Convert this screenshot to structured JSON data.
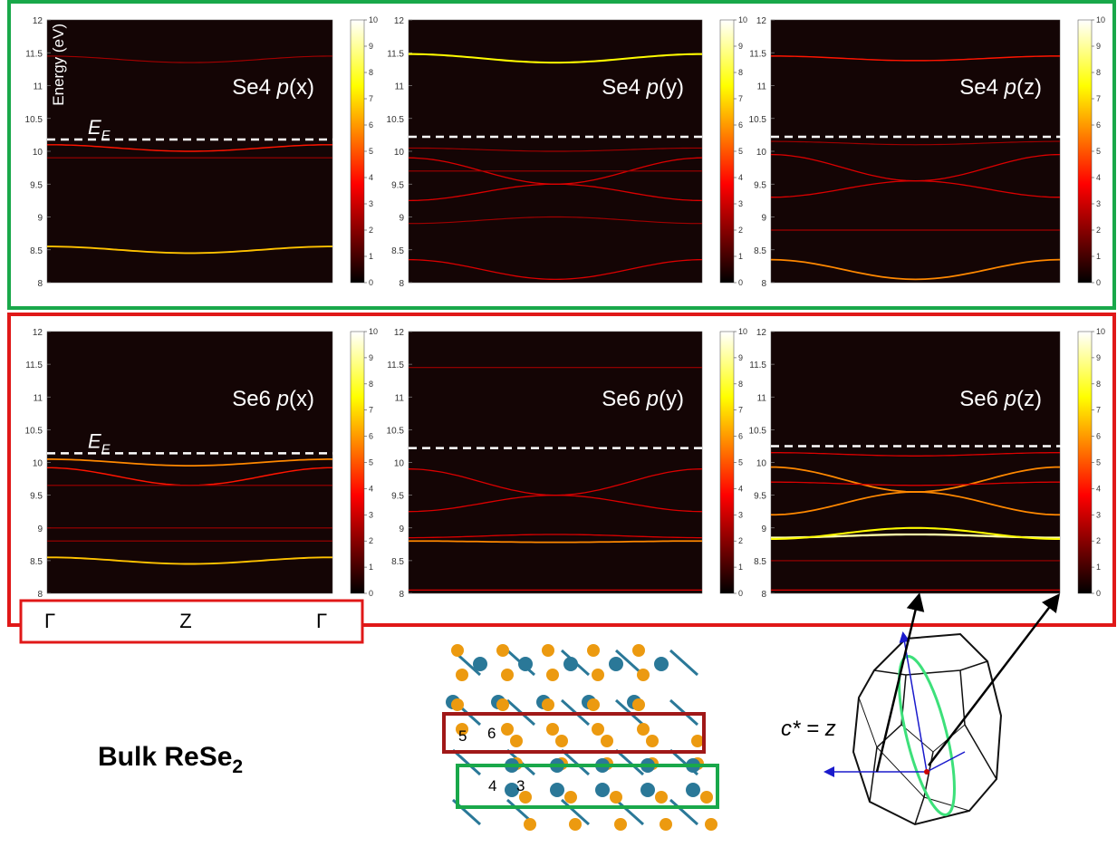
{
  "figure": {
    "ylabel": "Energy (eV)",
    "ef": {
      "symbol": "E",
      "sub": "F"
    },
    "kpoints": [
      "Γ",
      "Z",
      "Γ"
    ],
    "bulk": {
      "text": "Bulk ReSe",
      "sub": "2"
    },
    "atoms": [
      "5",
      "6",
      "4",
      "3"
    ],
    "axis_label": "c* = z",
    "panels": [
      {
        "atom": "Se4",
        "orbital": "p",
        "component": "(x)",
        "ylim": [
          8,
          12
        ],
        "yticks": [
          8,
          8.5,
          9,
          9.5,
          10,
          10.5,
          11,
          11.5,
          12
        ],
        "fermi": 10.18,
        "clim": [
          0,
          10
        ],
        "cticks": [
          0,
          1,
          2,
          3,
          4,
          5,
          6,
          7,
          8,
          9,
          10
        ],
        "bands": [
          {
            "gamma": 10.1,
            "z": 10.0,
            "intensity": 3
          },
          {
            "gamma": 8.55,
            "z": 8.45,
            "intensity": 6
          },
          {
            "gamma": 11.45,
            "z": 11.35,
            "intensity": 1
          },
          {
            "gamma": 9.9,
            "z": 9.9,
            "intensity": 1
          }
        ]
      },
      {
        "atom": "Se4",
        "orbital": "p",
        "component": "(y)",
        "ylim": [
          8,
          12
        ],
        "yticks": [
          8,
          8.5,
          9,
          9.5,
          10,
          10.5,
          11,
          11.5,
          12
        ],
        "fermi": 10.22,
        "clim": [
          0,
          10
        ],
        "cticks": [
          0,
          1,
          2,
          3,
          4,
          5,
          6,
          7,
          8,
          9,
          10
        ],
        "bands": [
          {
            "gamma": 11.48,
            "z": 11.35,
            "intensity": 7
          },
          {
            "gamma": 9.9,
            "z": 9.5,
            "intensity": 2
          },
          {
            "gamma": 9.25,
            "z": 9.5,
            "intensity": 2
          },
          {
            "gamma": 9.7,
            "z": 9.7,
            "intensity": 1
          },
          {
            "gamma": 8.9,
            "z": 9.0,
            "intensity": 1
          },
          {
            "gamma": 8.35,
            "z": 8.05,
            "intensity": 2
          },
          {
            "gamma": 10.05,
            "z": 10.0,
            "intensity": 1
          }
        ]
      },
      {
        "atom": "Se4",
        "orbital": "p",
        "component": "(z)",
        "ylim": [
          8,
          12
        ],
        "yticks": [
          8,
          8.5,
          9,
          9.5,
          10,
          10.5,
          11,
          11.5,
          12
        ],
        "fermi": 10.22,
        "clim": [
          0,
          10
        ],
        "cticks": [
          0,
          1,
          2,
          3,
          4,
          5,
          6,
          7,
          8,
          9,
          10
        ],
        "bands": [
          {
            "gamma": 11.45,
            "z": 11.38,
            "intensity": 3
          },
          {
            "gamma": 8.35,
            "z": 8.05,
            "intensity": 5
          },
          {
            "gamma": 9.95,
            "z": 9.55,
            "intensity": 2
          },
          {
            "gamma": 9.3,
            "z": 9.55,
            "intensity": 2
          },
          {
            "gamma": 10.15,
            "z": 10.1,
            "intensity": 1
          },
          {
            "gamma": 8.8,
            "z": 8.8,
            "intensity": 1
          }
        ]
      },
      {
        "atom": "Se6",
        "orbital": "p",
        "component": "(x)",
        "ylim": [
          8,
          12
        ],
        "yticks": [
          8,
          8.5,
          9,
          9.5,
          10,
          10.5,
          11,
          11.5,
          12
        ],
        "fermi": 10.14,
        "clim": [
          0,
          10
        ],
        "cticks": [
          0,
          1,
          2,
          3,
          4,
          5,
          6,
          7,
          8,
          9,
          10
        ],
        "bands": [
          {
            "gamma": 10.05,
            "z": 9.95,
            "intensity": 5
          },
          {
            "gamma": 9.92,
            "z": 9.65,
            "intensity": 3
          },
          {
            "gamma": 8.55,
            "z": 8.45,
            "intensity": 6
          },
          {
            "gamma": 9.65,
            "z": 9.65,
            "intensity": 1
          },
          {
            "gamma": 8.8,
            "z": 8.8,
            "intensity": 1
          },
          {
            "gamma": 9.0,
            "z": 9.0,
            "intensity": 1
          }
        ]
      },
      {
        "atom": "Se6",
        "orbital": "p",
        "component": "(y)",
        "ylim": [
          8,
          12
        ],
        "yticks": [
          8,
          8.5,
          9,
          9.5,
          10,
          10.5,
          11,
          11.5,
          12
        ],
        "fermi": 10.22,
        "clim": [
          0,
          10
        ],
        "cticks": [
          0,
          1,
          2,
          3,
          4,
          5,
          6,
          7,
          8,
          9,
          10
        ],
        "bands": [
          {
            "gamma": 8.8,
            "z": 8.78,
            "intensity": 5
          },
          {
            "gamma": 9.9,
            "z": 9.5,
            "intensity": 2
          },
          {
            "gamma": 9.25,
            "z": 9.5,
            "intensity": 2
          },
          {
            "gamma": 8.05,
            "z": 8.05,
            "intensity": 2
          },
          {
            "gamma": 11.45,
            "z": 11.45,
            "intensity": 1
          },
          {
            "gamma": 8.85,
            "z": 8.9,
            "intensity": 2
          }
        ]
      },
      {
        "atom": "Se6",
        "orbital": "p",
        "component": "(z)",
        "ylim": [
          8,
          12
        ],
        "yticks": [
          8,
          8.5,
          9,
          9.5,
          10,
          10.5,
          11,
          11.5,
          12
        ],
        "fermi": 10.25,
        "clim": [
          0,
          10
        ],
        "cticks": [
          0,
          1,
          2,
          3,
          4,
          5,
          6,
          7,
          8,
          9,
          10
        ],
        "bands": [
          {
            "gamma": 9.93,
            "z": 9.55,
            "intensity": 5
          },
          {
            "gamma": 9.2,
            "z": 9.55,
            "intensity": 5
          },
          {
            "gamma": 8.85,
            "z": 8.9,
            "intensity": 9
          },
          {
            "gamma": 8.83,
            "z": 9.0,
            "intensity": 7
          },
          {
            "gamma": 10.15,
            "z": 10.1,
            "intensity": 2
          },
          {
            "gamma": 8.05,
            "z": 8.05,
            "intensity": 2
          },
          {
            "gamma": 8.5,
            "z": 8.5,
            "intensity": 1
          },
          {
            "gamma": 9.7,
            "z": 9.65,
            "intensity": 2
          }
        ]
      }
    ]
  }
}
